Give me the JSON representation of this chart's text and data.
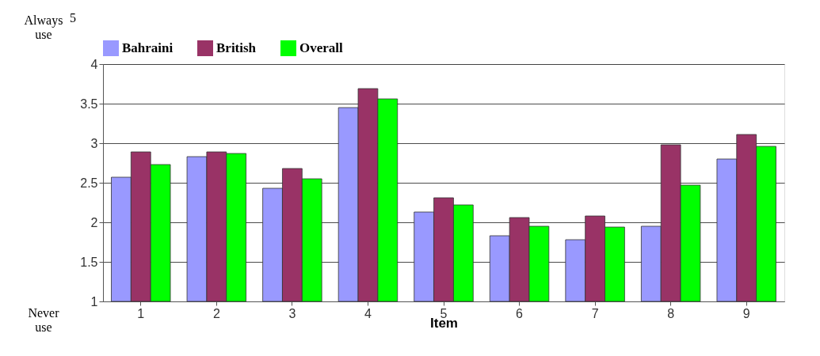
{
  "chart_data": {
    "type": "bar",
    "xlabel": "Item",
    "categories": [
      "1",
      "2",
      "3",
      "4",
      "5",
      "6",
      "7",
      "8",
      "9"
    ],
    "series": [
      {
        "name": "Bahraini",
        "color": "#9999ff",
        "values": [
          2.57,
          2.83,
          2.43,
          3.45,
          2.13,
          1.83,
          1.78,
          1.95,
          2.8
        ]
      },
      {
        "name": "British",
        "color": "#993366",
        "values": [
          2.89,
          2.89,
          2.68,
          3.69,
          2.31,
          2.06,
          2.08,
          2.98,
          3.11
        ]
      },
      {
        "name": "Overall",
        "color": "#00ff00",
        "values": [
          2.73,
          2.87,
          2.55,
          3.56,
          2.22,
          1.95,
          1.94,
          2.47,
          2.96
        ]
      }
    ],
    "ylim": [
      1,
      4
    ],
    "yticks": [
      1,
      1.5,
      2,
      2.5,
      3,
      3.5,
      4
    ],
    "annotations": [
      "Always use",
      "5",
      "Never use"
    ],
    "grid": "y",
    "legend": "top"
  }
}
